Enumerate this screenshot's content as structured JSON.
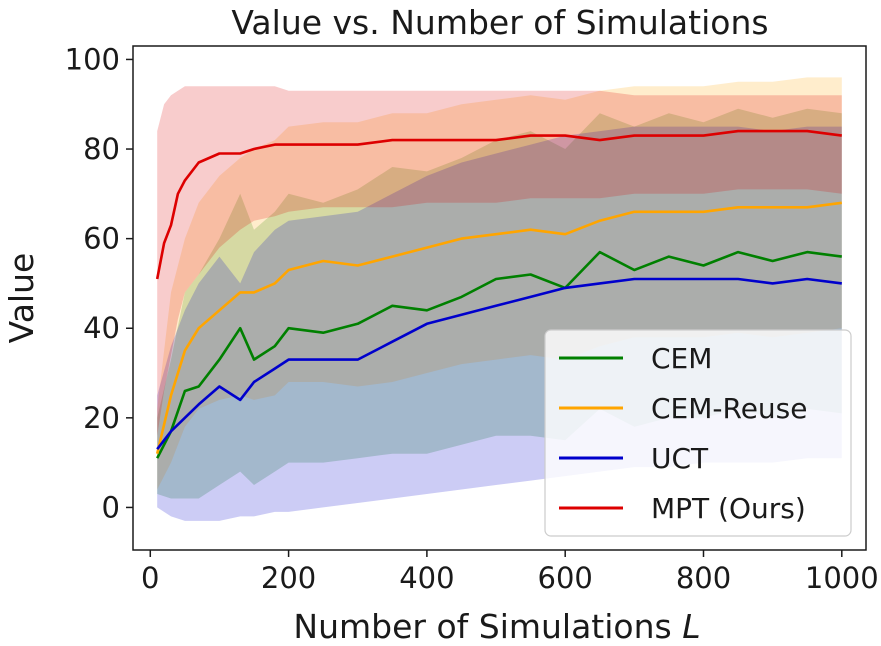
{
  "chart_data": {
    "type": "line",
    "title": "Value vs. Number of Simulations",
    "xlabel": "Number of Simulations",
    "xlabel_symbol": "L",
    "ylabel": "Value",
    "xlim": [
      -25,
      1035
    ],
    "ylim": [
      -9.5,
      103
    ],
    "xticks": [
      0,
      200,
      400,
      600,
      800,
      1000
    ],
    "yticks": [
      0,
      20,
      40,
      60,
      80,
      100
    ],
    "legend_position": "lower-right",
    "series": [
      {
        "name": "CEM",
        "color": "#008000",
        "x": [
          10,
          30,
          50,
          70,
          100,
          130,
          150,
          180,
          200,
          250,
          300,
          350,
          400,
          450,
          500,
          550,
          600,
          650,
          700,
          750,
          800,
          850,
          900,
          950,
          1000
        ],
        "mean": [
          11,
          17,
          26,
          27,
          33,
          40,
          33,
          36,
          40,
          39,
          41,
          45,
          44,
          47,
          51,
          52,
          49,
          57,
          53,
          56,
          54,
          57,
          55,
          57,
          56
        ],
        "lower": [
          3,
          2,
          2,
          2,
          5,
          8,
          5,
          8,
          10,
          10,
          11,
          12,
          12,
          14,
          16,
          16,
          15,
          22,
          18,
          20,
          20,
          22,
          20,
          22,
          21
        ],
        "upper": [
          20,
          33,
          48,
          52,
          60,
          70,
          62,
          66,
          70,
          68,
          71,
          76,
          75,
          78,
          82,
          84,
          80,
          88,
          85,
          88,
          86,
          89,
          87,
          89,
          88
        ]
      },
      {
        "name": "CEM-Reuse",
        "color": "#FFA500",
        "x": [
          10,
          30,
          50,
          70,
          100,
          130,
          150,
          180,
          200,
          250,
          300,
          350,
          400,
          450,
          500,
          550,
          600,
          650,
          700,
          750,
          800,
          850,
          900,
          950,
          1000
        ],
        "mean": [
          12,
          25,
          35,
          40,
          44,
          48,
          48,
          50,
          53,
          55,
          54,
          56,
          58,
          60,
          61,
          62,
          61,
          64,
          66,
          66,
          66,
          67,
          67,
          67,
          68
        ],
        "lower": [
          4,
          10,
          18,
          22,
          24,
          25,
          24,
          25,
          28,
          28,
          27,
          28,
          30,
          32,
          33,
          34,
          33,
          36,
          38,
          38,
          38,
          39,
          38,
          39,
          40
        ],
        "upper": [
          22,
          48,
          60,
          68,
          74,
          78,
          80,
          82,
          85,
          86,
          86,
          88,
          88,
          90,
          91,
          92,
          91,
          93,
          94,
          94,
          94,
          95,
          95,
          96,
          96
        ]
      },
      {
        "name": "UCT",
        "color": "#0000CC",
        "x": [
          10,
          30,
          50,
          70,
          100,
          130,
          150,
          180,
          200,
          250,
          300,
          350,
          400,
          450,
          500,
          550,
          600,
          650,
          700,
          750,
          800,
          850,
          900,
          950,
          1000
        ],
        "mean": [
          13,
          17,
          20,
          23,
          27,
          24,
          28,
          31,
          33,
          33,
          33,
          37,
          41,
          43,
          45,
          47,
          49,
          50,
          51,
          51,
          51,
          51,
          50,
          51,
          50
        ],
        "lower": [
          0,
          -2,
          -3,
          -3,
          -3,
          -2,
          -2,
          -1,
          -1,
          0,
          1,
          2,
          3,
          4,
          5,
          6,
          7,
          8,
          9,
          9,
          10,
          10,
          10,
          11,
          11
        ],
        "upper": [
          25,
          36,
          44,
          50,
          56,
          50,
          57,
          62,
          64,
          65,
          66,
          70,
          74,
          77,
          79,
          81,
          83,
          84,
          85,
          85,
          85,
          85,
          84,
          85,
          85
        ]
      },
      {
        "name": "MPT (Ours)",
        "color": "#DD0000",
        "x": [
          10,
          20,
          30,
          40,
          50,
          70,
          100,
          130,
          150,
          180,
          200,
          250,
          300,
          350,
          400,
          450,
          500,
          550,
          600,
          650,
          700,
          750,
          800,
          850,
          900,
          950,
          1000
        ],
        "mean": [
          51,
          59,
          63,
          70,
          73,
          77,
          79,
          79,
          80,
          81,
          81,
          81,
          81,
          82,
          82,
          82,
          82,
          83,
          83,
          82,
          83,
          83,
          83,
          84,
          84,
          84,
          83
        ],
        "lower": [
          16,
          26,
          34,
          42,
          48,
          52,
          58,
          62,
          64,
          65,
          66,
          67,
          67,
          67,
          68,
          68,
          68,
          69,
          69,
          69,
          70,
          70,
          70,
          71,
          71,
          71,
          70
        ],
        "upper": [
          84,
          90,
          92,
          93,
          94,
          94,
          94,
          94,
          94,
          94,
          93,
          93,
          93,
          93,
          93,
          93,
          93,
          93,
          93,
          93,
          92,
          92,
          92,
          92,
          92,
          92,
          92
        ]
      }
    ]
  }
}
